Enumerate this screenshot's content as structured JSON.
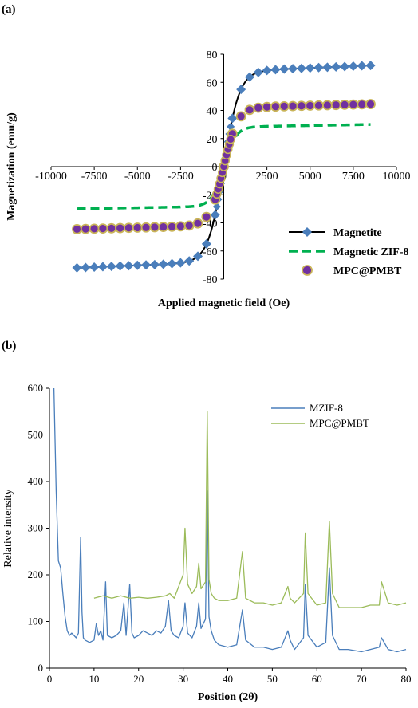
{
  "panels": {
    "a": "(a)",
    "b": "(b)"
  },
  "chart_data": [
    {
      "type": "scatter",
      "xlabel": "Applied magnetic field (Oe)",
      "ylabel": "Magnetization (emu/g)",
      "xlim": [
        -10000,
        10000
      ],
      "ylim": [
        -80,
        80
      ],
      "xticks": [
        -10000,
        -7500,
        -5000,
        -2500,
        0,
        2500,
        5000,
        7500,
        10000
      ],
      "yticks": [
        -80,
        -60,
        -40,
        -20,
        0,
        20,
        40,
        60,
        80
      ],
      "legend": "bottom-right",
      "grid": false,
      "series": [
        {
          "name": "Magnetite",
          "color": "#4a7ebb",
          "line": "#000000",
          "marker": "diamond",
          "Ms": 72,
          "H0": 900,
          "x": [
            -8500,
            -8000,
            -7500,
            -7000,
            -6500,
            -6000,
            -5500,
            -5000,
            -4500,
            -4000,
            -3500,
            -3000,
            -2500,
            -2000,
            -1500,
            -1000,
            -500,
            0,
            500,
            1000,
            1500,
            2000,
            2500,
            3000,
            3500,
            4000,
            4500,
            5000,
            5500,
            6000,
            6500,
            7000,
            7500,
            8000,
            8500
          ]
        },
        {
          "name": "Magnetic ZIF-8",
          "color": "#00b050",
          "line": "#00b050",
          "marker": "dash",
          "Ms": 30,
          "H0": 700,
          "x": [
            -8500,
            8500
          ]
        },
        {
          "name": "MPC@PMBT",
          "color": "#7030a0",
          "edge": "#c9b458",
          "marker": "circle",
          "Ms": 44.5,
          "H0": 800,
          "x": [
            -8500,
            -8000,
            -7500,
            -7000,
            -6500,
            -6000,
            -5500,
            -5000,
            -4500,
            -4000,
            -3500,
            -3000,
            -2500,
            -2000,
            -1500,
            -1000,
            -500,
            0,
            500,
            1000,
            1500,
            2000,
            2500,
            3000,
            3500,
            4000,
            4500,
            5000,
            5500,
            6000,
            6500,
            7000,
            7500,
            8000,
            8500
          ]
        }
      ]
    },
    {
      "type": "line",
      "xlabel": "Position (2θ)",
      "ylabel": "Relative intensity",
      "xlim": [
        0,
        80
      ],
      "ylim": [
        0,
        600
      ],
      "xticks": [
        0,
        10,
        20,
        30,
        40,
        50,
        60,
        70,
        80
      ],
      "yticks": [
        0,
        100,
        200,
        300,
        400,
        500,
        600
      ],
      "legend": "top-right",
      "grid": false,
      "series": [
        {
          "name": "MZIF-8",
          "color": "#4a7ebb",
          "x": [
            1,
            1.5,
            2,
            2.5,
            3,
            3.5,
            4,
            4.5,
            5,
            5.5,
            6,
            6.5,
            7,
            7.3,
            7.6,
            8,
            9,
            10,
            10.5,
            11,
            11.5,
            12,
            12.6,
            13,
            14,
            15,
            16,
            16.7,
            17.2,
            18,
            18.5,
            19,
            20,
            21,
            22,
            23,
            24,
            25,
            26,
            26.7,
            27.3,
            28,
            29,
            30,
            30.4,
            31,
            32,
            33,
            33.5,
            34,
            35,
            35.4,
            35.8,
            36.3,
            37,
            38,
            40,
            42,
            43.3,
            44,
            46,
            48,
            50,
            52,
            53.5,
            54,
            55,
            57,
            57.4,
            58,
            60,
            62,
            62.8,
            63.5,
            65,
            67,
            70,
            72,
            74,
            74.5,
            76,
            78,
            80
          ],
          "y": [
            600,
            380,
            230,
            215,
            160,
            110,
            80,
            70,
            75,
            70,
            65,
            75,
            280,
            120,
            65,
            60,
            55,
            60,
            95,
            70,
            80,
            60,
            185,
            70,
            65,
            70,
            80,
            140,
            70,
            180,
            75,
            65,
            70,
            80,
            75,
            70,
            80,
            75,
            90,
            145,
            80,
            70,
            65,
            90,
            140,
            75,
            65,
            90,
            140,
            85,
            105,
            380,
            110,
            80,
            60,
            50,
            45,
            50,
            125,
            60,
            45,
            45,
            40,
            45,
            80,
            60,
            40,
            65,
            180,
            70,
            45,
            55,
            215,
            70,
            40,
            40,
            35,
            40,
            45,
            65,
            40,
            35,
            40
          ]
        },
        {
          "name": "MPC@PMBT",
          "color": "#9bbb59",
          "x": [
            10,
            12,
            14,
            16,
            18,
            20,
            22,
            24,
            26,
            27,
            28,
            29,
            30,
            30.4,
            31,
            32,
            33,
            33.5,
            34,
            35,
            35.4,
            35.8,
            36.3,
            37,
            38,
            40,
            42,
            43.3,
            44,
            46,
            48,
            50,
            52,
            53.5,
            54,
            55,
            57,
            57.4,
            58,
            60,
            62,
            62.8,
            63.5,
            65,
            67,
            70,
            72,
            74,
            74.5,
            76,
            78,
            80
          ],
          "y": [
            150,
            155,
            150,
            155,
            150,
            152,
            150,
            152,
            155,
            160,
            150,
            175,
            200,
            300,
            180,
            160,
            175,
            225,
            170,
            185,
            550,
            190,
            160,
            150,
            145,
            145,
            150,
            250,
            150,
            140,
            140,
            135,
            140,
            175,
            150,
            140,
            160,
            290,
            160,
            135,
            140,
            315,
            160,
            130,
            130,
            130,
            135,
            135,
            185,
            140,
            135,
            140
          ]
        }
      ]
    }
  ]
}
